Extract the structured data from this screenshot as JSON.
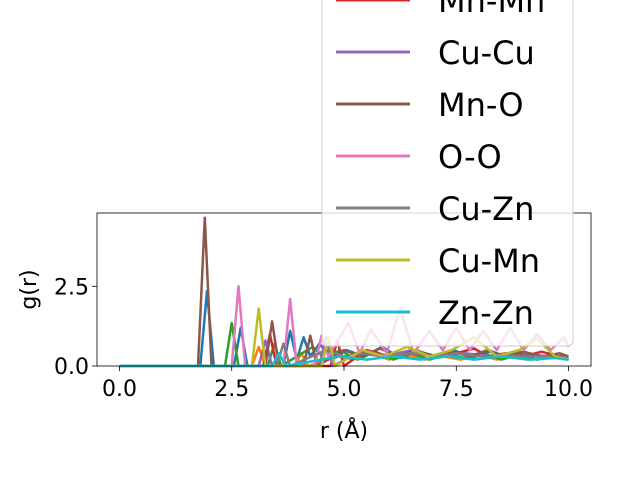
{
  "chart_data": {
    "type": "line",
    "title": "",
    "xlabel": "r (Å)",
    "ylabel": "g(r)",
    "xlim": [
      -0.5,
      10.5
    ],
    "ylim": [
      0,
      4.8
    ],
    "xticks": [
      0.0,
      2.5,
      5.0,
      7.5,
      10.0
    ],
    "xtick_labels": [
      "0.0",
      "2.5",
      "5.0",
      "7.5",
      "10.0"
    ],
    "yticks": [
      0.0,
      2.5
    ],
    "ytick_labels": [
      "0.0",
      "2.5"
    ],
    "grid": false,
    "legend_position": "upper-right, overflowing above axes",
    "series": [
      {
        "name": "",
        "color": "#1f77b4",
        "x": [
          0,
          1.8,
          1.95,
          2.1,
          2.55,
          2.7,
          2.85,
          3.65,
          3.8,
          3.95,
          4.1,
          4.25,
          4.45,
          4.75,
          5.05,
          5.45,
          5.85,
          6.25,
          6.65,
          7.05,
          7.45,
          7.85,
          8.25,
          8.65,
          9.05,
          9.45,
          9.85,
          10.0
        ],
        "y": [
          0,
          0,
          2.35,
          0,
          0,
          1.2,
          0,
          0,
          1.1,
          0.2,
          0.9,
          0.3,
          0.7,
          0.2,
          0.5,
          0.3,
          0.6,
          0.25,
          0.4,
          0.3,
          0.5,
          0.25,
          0.45,
          0.3,
          0.4,
          0.3,
          0.3,
          0.2
        ]
      },
      {
        "name": "",
        "color": "#ff7f0e",
        "x": [
          0,
          2.95,
          3.1,
          3.25,
          3.9,
          4.05,
          4.2,
          4.9,
          5.2,
          5.6,
          6.0,
          6.4,
          6.8,
          7.2,
          7.6,
          8.0,
          8.4,
          8.8,
          9.2,
          9.6,
          10.0
        ],
        "y": [
          0,
          0,
          0.6,
          0,
          0,
          0.4,
          0,
          0.3,
          0.2,
          0.4,
          0.2,
          0.35,
          0.2,
          0.3,
          0.2,
          0.35,
          0.2,
          0.3,
          0.2,
          0.3,
          0.2
        ]
      },
      {
        "name": "",
        "color": "#2ca02c",
        "x": [
          0,
          2.35,
          2.5,
          2.65,
          3.3,
          3.45,
          3.6,
          4.3,
          4.6,
          4.9,
          5.3,
          5.7,
          6.1,
          6.5,
          6.9,
          7.3,
          7.7,
          8.1,
          8.5,
          8.9,
          9.3,
          9.7,
          10.0
        ],
        "y": [
          0,
          0,
          1.35,
          0,
          0,
          0.7,
          0,
          0.6,
          0.2,
          0.5,
          0.2,
          0.45,
          0.2,
          0.4,
          0.2,
          0.35,
          0.25,
          0.4,
          0.2,
          0.35,
          0.2,
          0.3,
          0.2
        ]
      },
      {
        "name": "Mn-Mn",
        "color": "#d62728",
        "x": [
          0,
          3.2,
          3.35,
          3.5,
          4.7,
          4.85,
          5.0,
          5.5,
          6.0,
          6.5,
          7.0,
          7.5,
          7.9,
          8.2,
          8.6,
          9.0,
          9.4,
          9.8,
          10.0
        ],
        "y": [
          0,
          0,
          1.0,
          0,
          0,
          0.8,
          0,
          0.5,
          0.3,
          0.5,
          0.3,
          0.4,
          0.55,
          0.3,
          0.4,
          0.3,
          0.45,
          0.3,
          0.2
        ]
      },
      {
        "name": "Cu-Cu",
        "color": "#9467bd",
        "x": [
          0,
          3.1,
          3.25,
          3.4,
          4.45,
          4.6,
          4.75,
          5.3,
          5.9,
          6.5,
          7.1,
          7.7,
          8.3,
          8.9,
          9.5,
          10.0
        ],
        "y": [
          0,
          0,
          0.8,
          0,
          0,
          0.9,
          0,
          0.4,
          0.3,
          0.5,
          0.3,
          0.4,
          0.3,
          0.45,
          0.3,
          0.2
        ]
      },
      {
        "name": "Mn-O",
        "color": "#8c564b",
        "x": [
          0,
          1.75,
          1.9,
          2.05,
          3.25,
          3.4,
          3.55,
          4.1,
          4.25,
          4.4,
          5.0,
          5.4,
          5.8,
          6.2,
          6.6,
          7.0,
          7.4,
          7.8,
          8.2,
          8.6,
          9.0,
          9.4,
          9.8,
          10.0
        ],
        "y": [
          0,
          0,
          4.65,
          0,
          0,
          1.4,
          0,
          0,
          0.95,
          0,
          0.5,
          0.3,
          0.55,
          0.3,
          0.5,
          0.3,
          0.45,
          0.3,
          0.5,
          0.3,
          0.45,
          0.3,
          0.4,
          0.3
        ]
      },
      {
        "name": "O-O",
        "color": "#e377c2",
        "x": [
          0,
          2.5,
          2.65,
          2.8,
          3.65,
          3.8,
          3.95,
          4.35,
          4.5,
          4.65,
          5.1,
          5.35,
          5.6,
          5.95,
          6.25,
          6.55,
          6.9,
          7.2,
          7.5,
          7.8,
          8.1,
          8.4,
          8.7,
          9.0,
          9.3,
          9.6,
          9.9,
          10.0
        ],
        "y": [
          0,
          0,
          2.5,
          0,
          0,
          2.1,
          0,
          0,
          0.95,
          0.3,
          1.35,
          0.4,
          1.15,
          0.4,
          1.8,
          0.4,
          1.1,
          0.5,
          1.2,
          0.5,
          1.1,
          0.5,
          1.2,
          0.5,
          1.0,
          0.5,
          0.9,
          0.6
        ]
      },
      {
        "name": "Cu-Zn",
        "color": "#7f7f7f",
        "x": [
          0,
          3.5,
          3.65,
          3.8,
          4.6,
          5.0,
          5.5,
          6.0,
          6.5,
          7.0,
          7.5,
          8.0,
          8.5,
          9.0,
          9.5,
          10.0
        ],
        "y": [
          0,
          0,
          0.7,
          0,
          0.5,
          0.3,
          0.4,
          0.3,
          0.4,
          0.3,
          0.4,
          0.3,
          0.35,
          0.3,
          0.3,
          0.25
        ]
      },
      {
        "name": "Cu-Mn",
        "color": "#bcbd22",
        "x": [
          0,
          2.95,
          3.1,
          3.25,
          4.5,
          4.65,
          4.8,
          5.4,
          5.9,
          6.4,
          6.9,
          7.4,
          7.9,
          8.4,
          8.9,
          9.3,
          9.7,
          10.0
        ],
        "y": [
          0,
          0,
          1.8,
          0,
          0,
          0.9,
          0,
          0.5,
          0.3,
          0.6,
          0.3,
          0.5,
          0.9,
          0.3,
          0.5,
          0.85,
          0.3,
          0.2
        ]
      },
      {
        "name": "Zn-Zn",
        "color": "#17becf",
        "x": [
          0,
          3.4,
          3.55,
          3.7,
          4.9,
          5.5,
          6.1,
          6.7,
          7.3,
          7.9,
          8.5,
          9.1,
          9.7,
          10.0
        ],
        "y": [
          0,
          0,
          0.4,
          0,
          0.3,
          0.2,
          0.3,
          0.2,
          0.3,
          0.2,
          0.3,
          0.2,
          0.25,
          0.2
        ]
      }
    ]
  }
}
